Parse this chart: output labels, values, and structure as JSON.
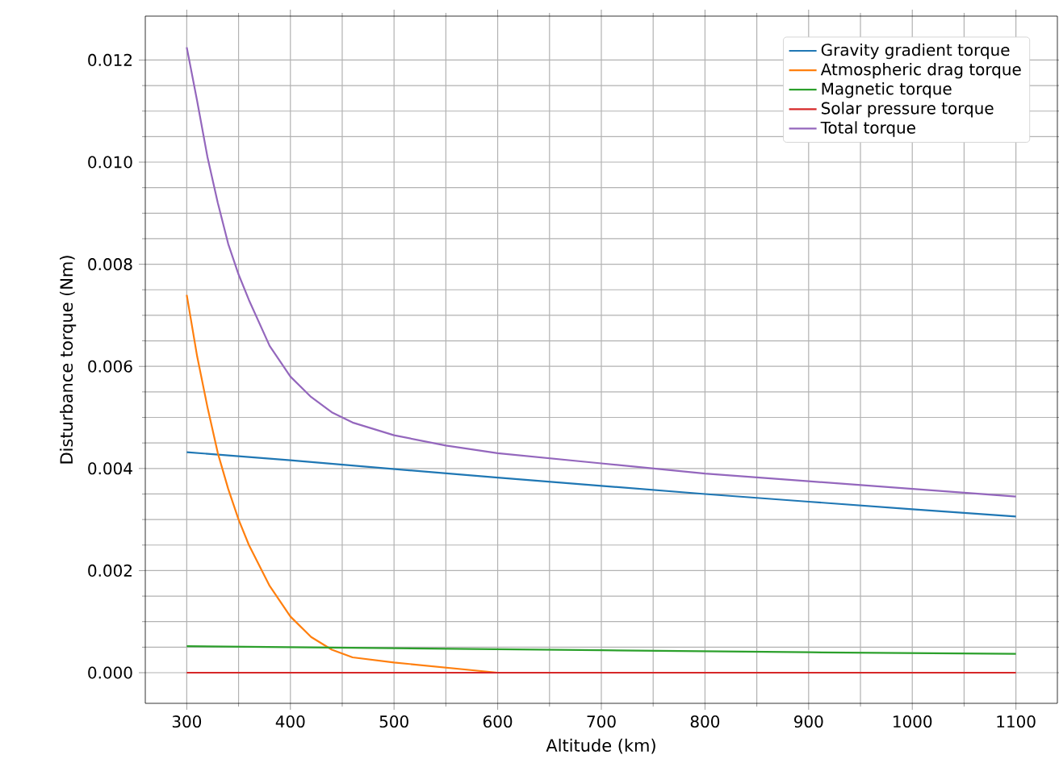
{
  "chart_data": {
    "type": "line",
    "xlabel": "Altitude (km)",
    "ylabel": "Disturbance torque (Nm)",
    "xlim": [
      260,
      1140
    ],
    "ylim": [
      -0.0006,
      0.01286
    ],
    "xticks": [
      300,
      400,
      500,
      600,
      700,
      800,
      900,
      1000,
      1100
    ],
    "yticks": [
      {
        "value": 0,
        "label": "0.000"
      },
      {
        "value": 0.002,
        "label": "0.002"
      },
      {
        "value": 0.004,
        "label": "0.004"
      },
      {
        "value": 0.006,
        "label": "0.006"
      },
      {
        "value": 0.008,
        "label": "0.008"
      },
      {
        "value": 0.01,
        "label": "0.010"
      },
      {
        "value": 0.012,
        "label": "0.012"
      }
    ],
    "grid": true,
    "legend": "top right",
    "marker": "none",
    "line_style": "solid",
    "series": [
      {
        "name": "Gravity gradient torque",
        "color": "#1f77b4",
        "x": [
          300,
          400,
          500,
          600,
          700,
          800,
          900,
          1000,
          1100
        ],
        "values": [
          0.00432,
          0.00416,
          0.00399,
          0.00382,
          0.00366,
          0.0035,
          0.00335,
          0.0032,
          0.00306
        ]
      },
      {
        "name": "Atmospheric drag torque",
        "color": "#ff7f0e",
        "x": [
          300,
          310,
          320,
          330,
          340,
          350,
          360,
          380,
          400,
          420,
          440,
          460,
          500,
          550,
          600,
          700
        ],
        "values": [
          0.0074,
          0.0062,
          0.0052,
          0.0043,
          0.0036,
          0.003,
          0.0025,
          0.0017,
          0.0011,
          0.0007,
          0.00045,
          0.0003,
          0.0002,
          0.0001,
          0.0,
          0.0
        ]
      },
      {
        "name": "Magnetic torque",
        "color": "#2ca02c",
        "x": [
          300,
          500,
          700,
          900,
          1100
        ],
        "values": [
          0.00052,
          0.00048,
          0.00044,
          0.0004,
          0.00037
        ]
      },
      {
        "name": "Solar pressure torque",
        "color": "#d62728",
        "x": [
          300,
          1100
        ],
        "values": [
          0.0,
          0.0
        ]
      },
      {
        "name": "Total torque",
        "color": "#9467bd",
        "x": [
          300,
          310,
          320,
          330,
          340,
          350,
          360,
          380,
          400,
          420,
          440,
          460,
          500,
          550,
          600,
          700,
          800,
          900,
          1000,
          1100
        ],
        "values": [
          0.01225,
          0.0112,
          0.0101,
          0.0092,
          0.0084,
          0.0078,
          0.0073,
          0.0064,
          0.0058,
          0.0054,
          0.0051,
          0.0049,
          0.00465,
          0.00445,
          0.0043,
          0.0041,
          0.0039,
          0.00375,
          0.0036,
          0.00345
        ]
      }
    ]
  }
}
